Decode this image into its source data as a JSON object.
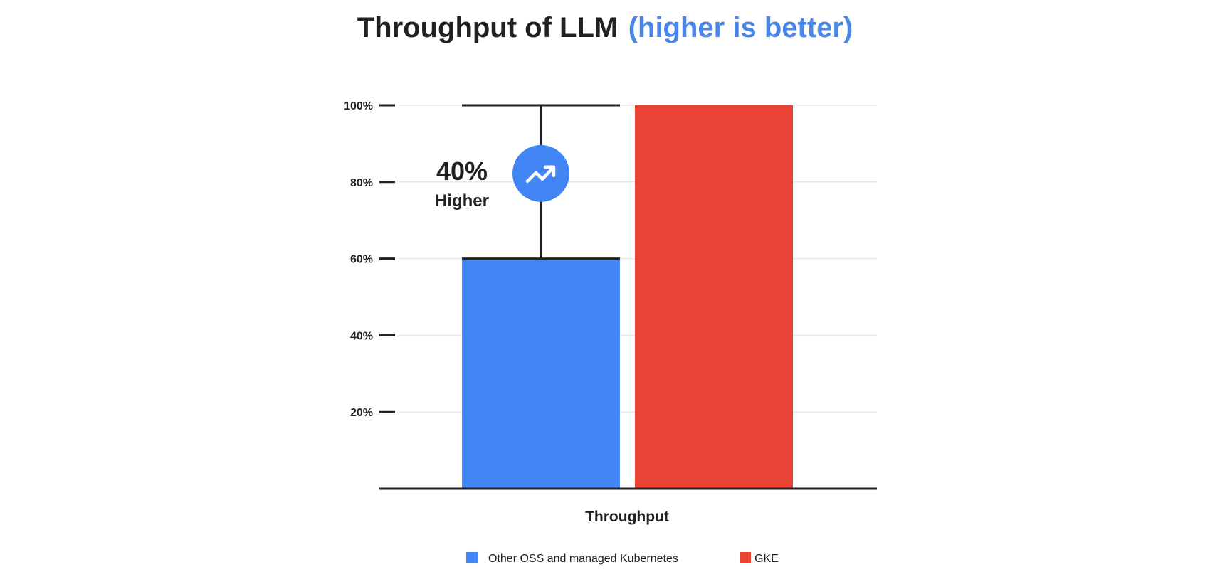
{
  "title": {
    "main": "Throughput of LLM",
    "accent": "(higher is better)"
  },
  "colors": {
    "text": "#202124",
    "accent": "#4a86e8",
    "blue_series": "#4285f4",
    "red_series": "#ea4335",
    "grid": "#e8e8e8",
    "axis": "#202124"
  },
  "annotation": {
    "value": "40%",
    "label": "Higher",
    "icon": "trending-up-icon"
  },
  "chart_data": {
    "type": "bar",
    "title": "Throughput of LLM (higher is better)",
    "xlabel": "Throughput",
    "ylabel": "",
    "ylim": [
      0,
      100
    ],
    "yticks": [
      20,
      40,
      60,
      80,
      100
    ],
    "ytick_labels": [
      "20%",
      "40%",
      "60%",
      "80%",
      "100%"
    ],
    "categories": [
      "Throughput"
    ],
    "series": [
      {
        "name": "Other OSS and managed Kubernetes",
        "values": [
          60
        ],
        "color": "#4285f4"
      },
      {
        "name": "GKE",
        "values": [
          100
        ],
        "color": "#ea4335"
      }
    ],
    "grid": true,
    "legend_position": "bottom"
  }
}
